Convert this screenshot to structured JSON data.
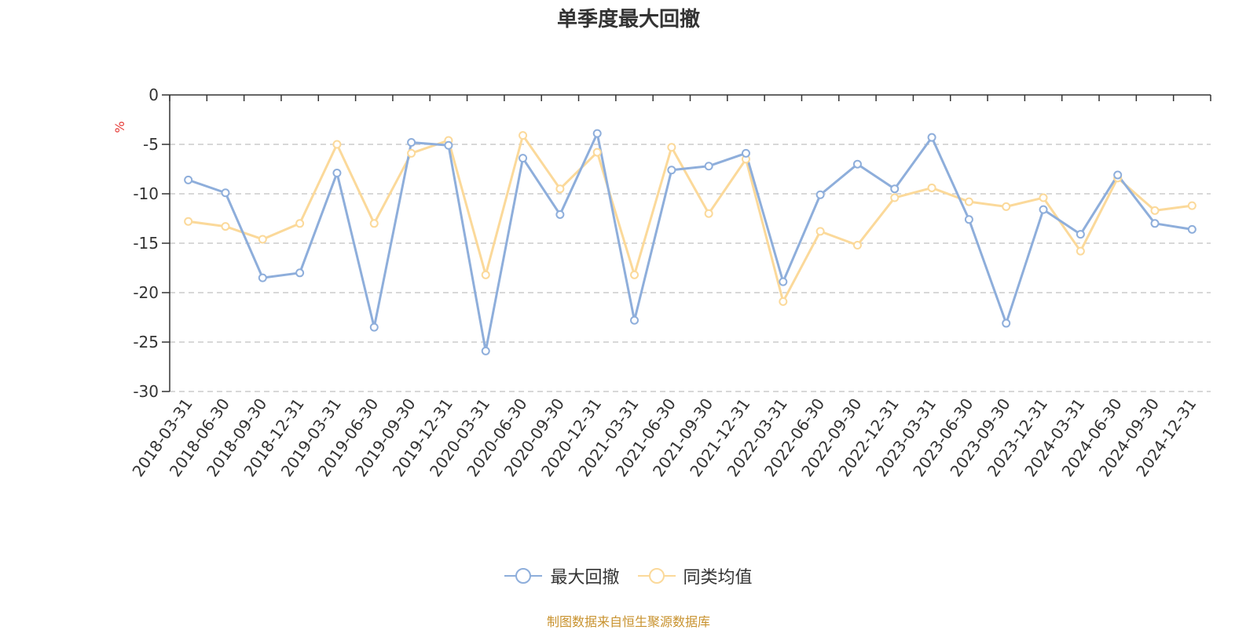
{
  "chart_data": {
    "type": "line",
    "title": "单季度最大回撤",
    "ylabel": "%",
    "ylim": [
      -30,
      0
    ],
    "yticks": [
      0,
      -5,
      -10,
      -15,
      -20,
      -25,
      -30
    ],
    "categories": [
      "2018-03-31",
      "2018-06-30",
      "2018-09-30",
      "2018-12-31",
      "2019-03-31",
      "2019-06-30",
      "2019-09-30",
      "2019-12-31",
      "2020-03-31",
      "2020-06-30",
      "2020-09-30",
      "2020-12-31",
      "2021-03-31",
      "2021-06-30",
      "2021-09-30",
      "2021-12-31",
      "2022-03-31",
      "2022-06-30",
      "2022-09-30",
      "2022-12-31",
      "2023-03-31",
      "2023-06-30",
      "2023-09-30",
      "2023-12-31",
      "2024-03-31",
      "2024-06-30",
      "2024-09-30",
      "2024-12-31"
    ],
    "series": [
      {
        "name": "最大回撤",
        "color": "#8eaedb",
        "values": [
          -8.6,
          -9.9,
          -18.5,
          -18.0,
          -7.9,
          -23.5,
          -4.8,
          -5.1,
          -25.9,
          -6.4,
          -12.1,
          -3.9,
          -22.8,
          -7.6,
          -7.2,
          -5.9,
          -18.9,
          -10.1,
          -7.0,
          -9.5,
          -4.3,
          -12.6,
          -23.1,
          -11.6,
          -14.1,
          -8.1,
          -13.0,
          -13.6
        ]
      },
      {
        "name": "同类均值",
        "color": "#fbd99a",
        "values": [
          -12.8,
          -13.3,
          -14.6,
          -13.0,
          -5.0,
          -13.0,
          -5.9,
          -4.6,
          -18.2,
          -4.1,
          -9.5,
          -5.8,
          -18.2,
          -5.3,
          -12.0,
          -6.5,
          -20.9,
          -13.8,
          -15.2,
          -10.4,
          -9.4,
          -10.8,
          -11.3,
          -10.4,
          -15.8,
          -8.4,
          -11.7,
          -11.2
        ]
      }
    ],
    "grid": true,
    "legend_position": "bottom-center"
  },
  "legend": [
    {
      "label": "最大回撤",
      "color": "#8eaedb"
    },
    {
      "label": "同类均值",
      "color": "#fbd99a"
    }
  ],
  "source": "制图数据来自恒生聚源数据库"
}
